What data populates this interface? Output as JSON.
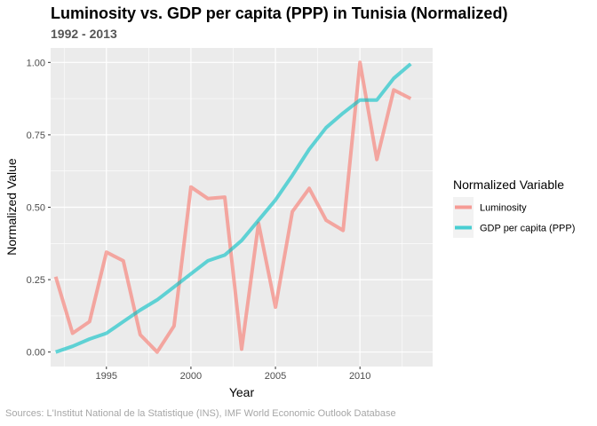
{
  "chart_data": {
    "type": "line",
    "title": "Luminosity vs. GDP per capita (PPP) in Tunisia (Normalized)",
    "subtitle": "1992 - 2013",
    "xlabel": "Year",
    "ylabel": "Normalized Value",
    "xlim": [
      1991.7,
      2014.3
    ],
    "ylim": [
      -0.05,
      1.05
    ],
    "x_ticks": [
      1995,
      2000,
      2005,
      2010
    ],
    "y_ticks": [
      0.0,
      0.25,
      0.5,
      0.75,
      1.0
    ],
    "y_tick_labels": [
      "0.00",
      "0.25",
      "0.50",
      "0.75",
      "1.00"
    ],
    "grid": true,
    "legend_title": "Normalized Variable",
    "legend_position": "right",
    "caption": "Sources: L'Institut National de la Statistique (INS), IMF World Economic Outlook Database",
    "x": [
      1992,
      1993,
      1994,
      1995,
      1996,
      1997,
      1998,
      1999,
      2000,
      2001,
      2002,
      2003,
      2004,
      2005,
      2006,
      2007,
      2008,
      2009,
      2010,
      2011,
      2012,
      2013
    ],
    "series": [
      {
        "name": "Luminosity",
        "color": "#F8766D",
        "values": [
          0.26,
          0.065,
          0.105,
          0.345,
          0.315,
          0.06,
          0.0,
          0.09,
          0.57,
          0.53,
          0.535,
          0.01,
          0.445,
          0.155,
          0.485,
          0.565,
          0.455,
          0.42,
          1.0,
          0.665,
          0.905,
          0.875
        ]
      },
      {
        "name": "GDP per capita (PPP)",
        "color": "#00BFC4",
        "values": [
          0.0,
          0.02,
          0.045,
          0.065,
          0.105,
          0.145,
          0.18,
          0.225,
          0.27,
          0.315,
          0.335,
          0.385,
          0.455,
          0.525,
          0.61,
          0.7,
          0.775,
          0.825,
          0.87,
          0.87,
          0.945,
          0.995
        ]
      }
    ]
  }
}
